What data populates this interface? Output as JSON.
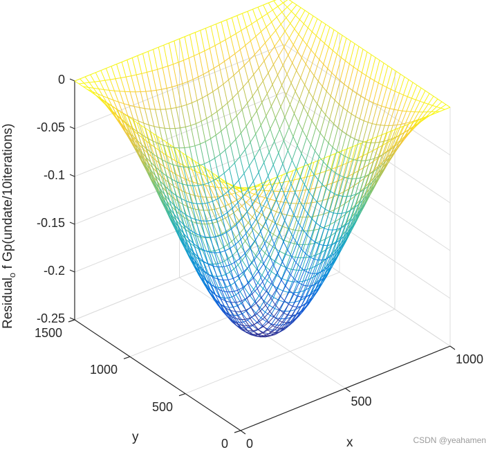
{
  "chart_data": {
    "type": "surface-mesh",
    "title": "",
    "xlabel": "x",
    "ylabel": "y",
    "zlabel": "Residual_of Gp(undate/10iterations)",
    "zlabel_parts": {
      "main": "Residual",
      "sub": "o",
      "rest": "f Gp(undate/10iterations)"
    },
    "xlim": [
      0,
      1000
    ],
    "ylim": [
      0,
      1500
    ],
    "zlim": [
      -0.25,
      0
    ],
    "xticks": [
      0,
      500,
      1000
    ],
    "yticks": [
      0,
      500,
      1000,
      1500
    ],
    "zticks": [
      0,
      -0.05,
      -0.1,
      -0.15,
      -0.2,
      -0.25
    ],
    "xtick_labels": [
      "0",
      "500",
      "1000"
    ],
    "ytick_labels": [
      "0",
      "500",
      "1000",
      "1500"
    ],
    "ztick_labels": [
      "0",
      "-0.05",
      "-0.1",
      "-0.15",
      "-0.2",
      "-0.25"
    ],
    "surface": {
      "function": "z = -0.25 * sin(pi*x/1000) * sin(pi*y/1500)",
      "grid_lines_x": 41,
      "grid_lines_y": 41,
      "z_min": -0.25,
      "z_max": 0,
      "colormap": "parula"
    },
    "grid": true,
    "box": false,
    "legend": null
  },
  "watermark": "CSDN @yeahamen"
}
